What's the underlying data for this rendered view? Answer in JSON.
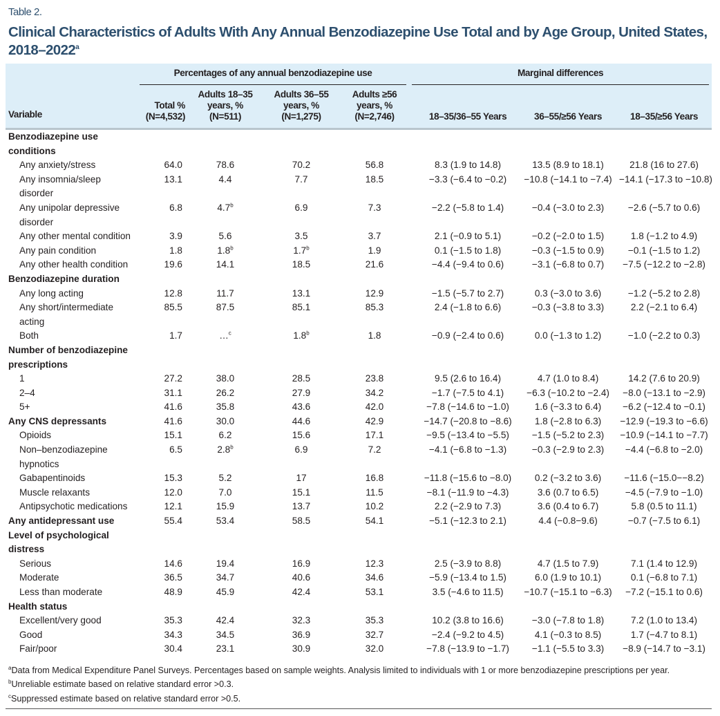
{
  "table_label": "Table 2.",
  "title": "Clinical Characteristics of Adults With Any Annual Benzodiazepine Use Total and by Age Group, United States, 2018–2022",
  "title_sup": "a",
  "header": {
    "group1": "Percentages of any annual benzodiazepine use",
    "group2": "Marginal differences",
    "columns": [
      "Variable",
      "Total % (N=4,532)",
      "Adults 18–35 years, % (N=511)",
      "Adults 36–55 years, % (N=1,275)",
      "Adults ≥56 years, % (N=2,746)",
      "18–35/36–55 Years",
      "36–55/≥56 Years",
      "18–35/≥56 Years"
    ]
  },
  "rows": [
    {
      "section": "Benzodiazepine use conditions"
    },
    {
      "label": "Any anxiety/stress",
      "values": [
        "64.0",
        "78.6",
        "70.2",
        "56.8",
        "8.3 (1.9 to 14.8)",
        "13.5 (8.9 to 18.1)",
        "21.8 (16 to 27.6)"
      ]
    },
    {
      "label": "Any insomnia/sleep disorder",
      "values": [
        "13.1",
        "4.4",
        "7.7",
        "18.5",
        "−3.3 (−6.4 to −0.2)",
        "−10.8 (−14.1 to −7.4)",
        "−14.1 (−17.3 to −10.8)"
      ]
    },
    {
      "label": "Any unipolar depressive disorder",
      "values": [
        "6.8",
        "4.7^b",
        "6.9",
        "7.3",
        "−2.2 (−5.8 to 1.4)",
        "−0.4 (−3.0 to 2.3)",
        "−2.6 (−5.7 to 0.6)"
      ]
    },
    {
      "label": "Any other mental condition",
      "values": [
        "3.9",
        "5.6",
        "3.5",
        "3.7",
        "2.1 (−0.9 to 5.1)",
        "−0.2 (−2.0 to 1.5)",
        "1.8 (−1.2 to 4.9)"
      ]
    },
    {
      "label": "Any pain condition",
      "values": [
        "1.8",
        "1.8^b",
        "1.7^b",
        "1.9",
        "0.1 (−1.5 to 1.8)",
        "−0.3 (−1.5 to 0.9)",
        "−0.1 (−1.5 to 1.2)"
      ]
    },
    {
      "label": "Any other health condition",
      "values": [
        "19.6",
        "14.1",
        "18.5",
        "21.6",
        "−4.4 (−9.4 to 0.6)",
        "−3.1 (−6.8 to 0.7)",
        "−7.5 (−12.2 to −2.8)"
      ]
    },
    {
      "section": "Benzodiazepine duration"
    },
    {
      "label": "Any long acting",
      "values": [
        "12.8",
        "11.7",
        "13.1",
        "12.9",
        "−1.5 (−5.7 to 2.7)",
        "0.3 (−3.0 to 3.6)",
        "−1.2 (−5.2 to 2.8)"
      ]
    },
    {
      "label": "Any short/intermediate acting",
      "values": [
        "85.5",
        "87.5",
        "85.1",
        "85.3",
        "2.4 (−1.8 to 6.6)",
        "−0.3 (−3.8 to 3.3)",
        "2.2 (−2.1 to 6.4)"
      ]
    },
    {
      "label": "Both",
      "values": [
        "1.7",
        "…^c",
        "1.8^b",
        "1.8",
        "−0.9 (−2.4 to 0.6)",
        "0.0 (−1.3 to 1.2)",
        "−1.0 (−2.2 to 0.3)"
      ]
    },
    {
      "section": "Number of benzodiazepine prescriptions"
    },
    {
      "label": "1",
      "values": [
        "27.2",
        "38.0",
        "28.5",
        "23.8",
        "9.5 (2.6 to 16.4)",
        "4.7 (1.0 to 8.4)",
        "14.2 (7.6 to 20.9)"
      ]
    },
    {
      "label": "2–4",
      "values": [
        "31.1",
        "26.2",
        "27.9",
        "34.2",
        "−1.7 (−7.5 to 4.1)",
        "−6.3 (−10.2 to −2.4)",
        "−8.0 (−13.1 to −2.9)"
      ]
    },
    {
      "label": "5+",
      "values": [
        "41.6",
        "35.8",
        "43.6",
        "42.0",
        "−7.8 (−14.6 to −1.0)",
        "1.6 (−3.3 to 6.4)",
        "−6.2 (−12.4 to −0.1)"
      ]
    },
    {
      "section": "Any CNS depressants",
      "values": [
        "41.6",
        "30.0",
        "44.6",
        "42.9",
        "−14.7 (−20.8 to −8.6)",
        "1.8 (−2.8 to 6.3)",
        "−12.9 (−19.3 to −6.6)"
      ]
    },
    {
      "label": "Opioids",
      "values": [
        "15.1",
        "6.2",
        "15.6",
        "17.1",
        "−9.5 (−13.4 to −5.5)",
        "−1.5 (−5.2 to 2.3)",
        "−10.9 (−14.1 to −7.7)"
      ]
    },
    {
      "label": "Non–benzodiazepine hypnotics",
      "values": [
        "6.5",
        "2.8^b",
        "6.9",
        "7.2",
        "−4.1 (−6.8 to −1.3)",
        "−0.3 (−2.9 to 2.3)",
        "−4.4 (−6.8 to −2.0)"
      ]
    },
    {
      "label": "Gabapentinoids",
      "values": [
        "15.3",
        "5.2",
        "17",
        "16.8",
        "−11.8 (−15.6 to −8.0)",
        "0.2 (−3.2 to 3.6)",
        "−11.6 (−15.0−−8.2)"
      ]
    },
    {
      "label": "Muscle relaxants",
      "values": [
        "12.0",
        "7.0",
        "15.1",
        "11.5",
        "−8.1 (−11.9 to −4.3)",
        "3.6 (0.7 to 6.5)",
        "−4.5 (−7.9 to −1.0)"
      ]
    },
    {
      "label": "Antipsychotic medications",
      "values": [
        "12.1",
        "15.9",
        "13.7",
        "10.2",
        "2.2 (−2.9 to 7.3)",
        "3.6 (0.4 to 6.7)",
        "5.8 (0.5 to 11.1)"
      ]
    },
    {
      "section": "Any antidepressant use",
      "values": [
        "55.4",
        "53.4",
        "58.5",
        "54.1",
        "−5.1 (−12.3 to 2.1)",
        "4.4 (−0.8−9.6)",
        "−0.7 (−7.5 to 6.1)"
      ]
    },
    {
      "section": "Level of psychological distress"
    },
    {
      "label": "Serious",
      "values": [
        "14.6",
        "19.4",
        "16.9",
        "12.3",
        "2.5 (−3.9 to 8.8)",
        "4.7 (1.5 to 7.9)",
        "7.1 (1.4 to 12.9)"
      ]
    },
    {
      "label": "Moderate",
      "values": [
        "36.5",
        "34.7",
        "40.6",
        "34.6",
        "−5.9 (−13.4 to 1.5)",
        "6.0 (1.9 to 10.1)",
        "0.1 (−6.8 to 7.1)"
      ]
    },
    {
      "label": "Less than moderate",
      "values": [
        "48.9",
        "45.9",
        "42.4",
        "53.1",
        "3.5 (−4.6 to 11.5)",
        "−10.7 (−15.1 to −6.3)",
        "−7.2 (−15.1 to 0.6)"
      ]
    },
    {
      "section": "Health status"
    },
    {
      "label": "Excellent/very good",
      "values": [
        "35.3",
        "42.4",
        "32.3",
        "35.3",
        "10.2 (3.8 to 16.6)",
        "−3.0 (−7.8 to 1.8)",
        "7.2 (1.0 to 13.4)"
      ]
    },
    {
      "label": "Good",
      "values": [
        "34.3",
        "34.5",
        "36.9",
        "32.7",
        "−2.4 (−9.2 to 4.5)",
        "4.1 (−0.3 to 8.5)",
        "1.7 (−4.7 to 8.1)"
      ]
    },
    {
      "label": "Fair/poor",
      "values": [
        "30.4",
        "23.1",
        "30.9",
        "32.0",
        "−7.8 (−13.9 to −1.7)",
        "−1.1 (−5.5 to 3.3)",
        "−8.9 (−14.7 to −3.1)"
      ]
    }
  ],
  "footnotes": [
    {
      "mark": "a",
      "text": "Data from Medical Expenditure Panel Surveys. Percentages based on sample weights. Analysis limited to individuals with 1 or more benzodiazepine prescriptions per year."
    },
    {
      "mark": "b",
      "text": "Unreliable estimate based on relative standard error >0.3."
    },
    {
      "mark": "c",
      "text": "Suppressed estimate based on relative standard error >0.5."
    }
  ]
}
